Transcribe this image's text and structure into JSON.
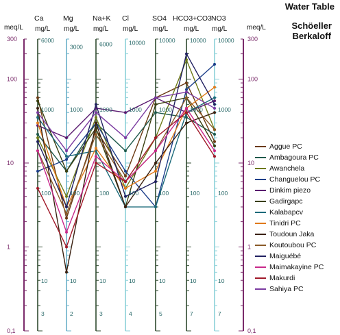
{
  "header": {
    "title": "Water Table",
    "subtitle_line1": "Schöeller",
    "subtitle_line2": "Berkaloff"
  },
  "chart_data": {
    "type": "line",
    "title": "Water Table",
    "subtitle": "Schöeller Berkaloff",
    "y_scale": "log",
    "ylim": [
      0.1,
      300
    ],
    "left_axis": {
      "unit_label": "meq/L",
      "ticks": [
        "300",
        "100",
        "10",
        "1",
        "0,1"
      ]
    },
    "right_axis": {
      "unit_label": "meq/L",
      "ticks": [
        "300",
        "100",
        "10",
        "1",
        "0,1"
      ]
    },
    "columns": [
      {
        "id": "Ca",
        "name": "Ca",
        "unit": "mg/L",
        "mg_ticks": [
          "6000",
          "1000",
          "100",
          "10",
          "3"
        ]
      },
      {
        "id": "Mg",
        "name": "Mg",
        "unit": "mg/L",
        "mg_ticks": [
          "3000",
          "1000",
          "100",
          "10",
          "2"
        ]
      },
      {
        "id": "NaK",
        "name": "Na+K",
        "unit": "mg/L",
        "mg_ticks": [
          "6000",
          "1000",
          "100",
          "10",
          "3"
        ]
      },
      {
        "id": "Cl",
        "name": "Cl",
        "unit": "mg/L",
        "mg_ticks": [
          "10000",
          "1000",
          "100",
          "10",
          "4"
        ]
      },
      {
        "id": "SO4",
        "name": "SO4",
        "unit": "mg/L",
        "mg_ticks": [
          "10000",
          "1000",
          "100",
          "10",
          "5"
        ]
      },
      {
        "id": "HCO3",
        "name": "HCO3+CO3",
        "unit": "mg/L",
        "mg_ticks": [
          "10000",
          "1000",
          "100",
          "10",
          "7"
        ]
      },
      {
        "id": "NO3",
        "name": "NO3",
        "unit": "mg/L",
        "mg_ticks": [
          "10000",
          "1000",
          "100",
          "10",
          "7"
        ]
      }
    ],
    "categories": [
      "Ca",
      "Mg",
      "Na+K",
      "Cl",
      "SO4",
      "HCO3+CO3",
      "NO3"
    ],
    "series": [
      {
        "name": "Aggue PC",
        "color": "#6b3a14",
        "values": [
          60,
          2.2,
          25,
          7,
          60,
          90,
          18
        ]
      },
      {
        "name": "Ambagoura PC",
        "color": "#1f5a4c",
        "values": [
          22,
          8,
          30,
          14,
          40,
          35,
          22
        ]
      },
      {
        "name": "Awanchela",
        "color": "#6e7a18",
        "values": [
          20,
          4,
          35,
          5,
          20,
          170,
          25
        ]
      },
      {
        "name": "Changuelou PC",
        "color": "#1d3f8a",
        "values": [
          8,
          11,
          30,
          8,
          3,
          75,
          150
        ]
      },
      {
        "name": "Dinkim piezo",
        "color": "#5a1a70",
        "values": [
          28,
          20,
          45,
          40,
          60,
          40,
          55
        ]
      },
      {
        "name": "Gadirgapc",
        "color": "#3a3f10",
        "values": [
          55,
          8,
          26,
          3,
          50,
          60,
          16
        ]
      },
      {
        "name": "Kalabapcv",
        "color": "#1b6a7a",
        "values": [
          35,
          12,
          14,
          3,
          3,
          40,
          60
        ]
      },
      {
        "name": "Tinidri PC",
        "color": "#e07a1a",
        "values": [
          30,
          3,
          15,
          5,
          8,
          45,
          80
        ]
      },
      {
        "name": "Toudoun Jaka",
        "color": "#3a2010",
        "values": [
          45,
          0.5,
          30,
          3,
          10,
          30,
          40
        ]
      },
      {
        "name": "Koutoubou PC",
        "color": "#8a5a28",
        "values": [
          14,
          2.5,
          22,
          6,
          14,
          60,
          25
        ]
      },
      {
        "name": "Maiguébé",
        "color": "#202060",
        "values": [
          18,
          3,
          50,
          4,
          6,
          200,
          50
        ]
      },
      {
        "name": "Maimakayine PC",
        "color": "#c8288a",
        "values": [
          14,
          1.5,
          12,
          6,
          14,
          45,
          14
        ]
      },
      {
        "name": "Makurdi",
        "color": "#a01828",
        "values": [
          5,
          1.0,
          10,
          6,
          20,
          40,
          12
        ]
      },
      {
        "name": "Sahiya PC",
        "color": "#7a3aa0",
        "values": [
          40,
          14,
          40,
          20,
          60,
          70,
          45
        ]
      }
    ],
    "grid": false,
    "legend_position": "right"
  }
}
